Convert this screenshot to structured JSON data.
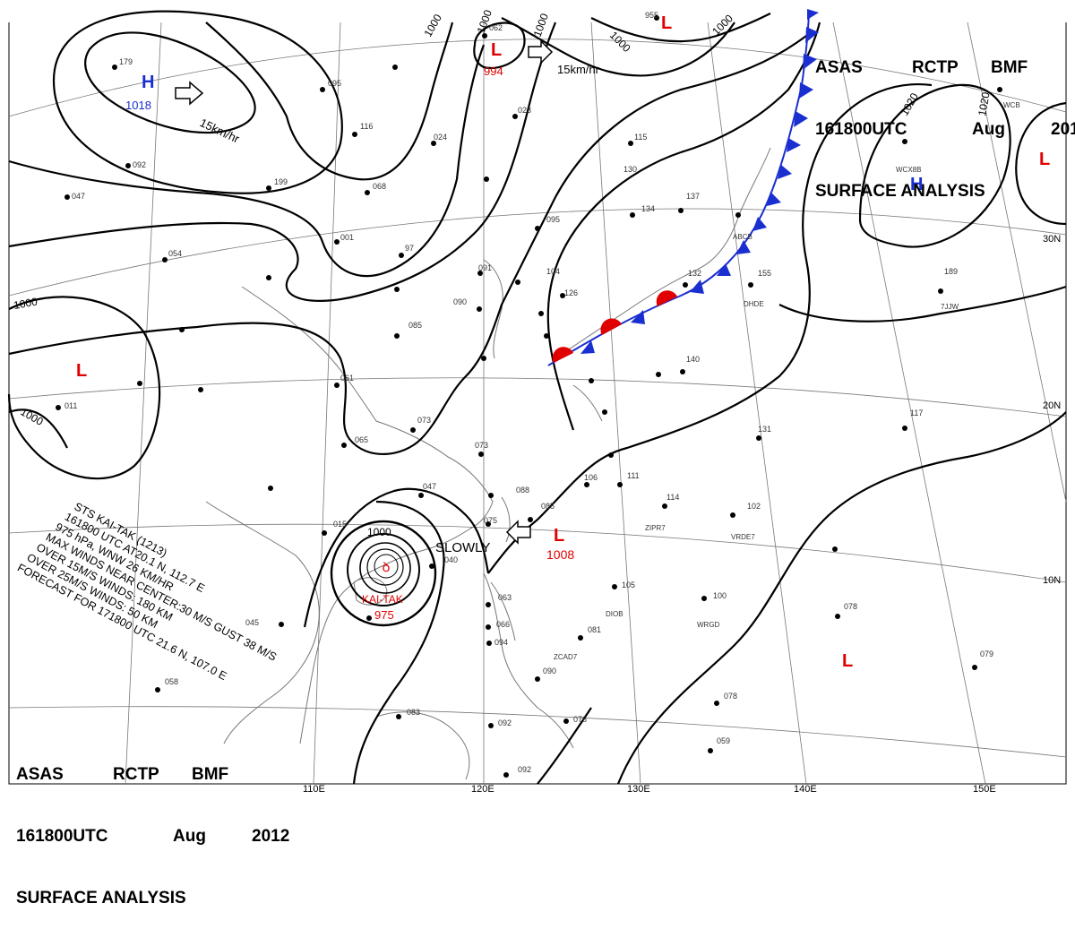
{
  "header": {
    "agency": "ASAS",
    "center": "RCTP",
    "office": "BMF",
    "valid_time": "161800UTC",
    "month": "Aug",
    "year": "2012",
    "product": "SURFACE ANALYSIS"
  },
  "longitude_labels": [
    "110E",
    "120E",
    "130E",
    "140E",
    "150E"
  ],
  "latitude_labels": [
    "30N",
    "20N",
    "10N"
  ],
  "pressure_centers": [
    {
      "type": "H",
      "value": "1018",
      "color": "#1a2fd0"
    },
    {
      "type": "L",
      "value": "994",
      "color": "#e00000"
    },
    {
      "type": "L",
      "value": "",
      "color": "#e00000"
    },
    {
      "type": "L",
      "value": "",
      "color": "#e00000"
    },
    {
      "type": "H",
      "value": "",
      "color": "#1a2fd0"
    },
    {
      "type": "L",
      "value": "",
      "color": "#e00000"
    },
    {
      "type": "L",
      "value": "1008",
      "color": "#e00000"
    },
    {
      "type": "L",
      "value": "",
      "color": "#e00000"
    }
  ],
  "isobar_labels": [
    "1000",
    "1000",
    "1000",
    "1000",
    "1000",
    "1000",
    "1000",
    "1020",
    "1020",
    "1000"
  ],
  "movement_labels": [
    "15km/hr",
    "15km/hr",
    "SLOWLY"
  ],
  "typhoon": {
    "name": "KAI-TAK",
    "pressure": "975",
    "bulletin": [
      "STS  KAI-TAK  (1213)",
      "161800 UTC  AT20.1 N, 112.7 E",
      "975 hPa, WNW  26 KM/HR",
      "MAX WINDS NEAR CENTER:30 M/S GUST 38 M/S",
      "OVER 15M/S WINDS: 180 KM",
      "OVER 25M/S WINDS: 50 KM",
      "FORECAST FOR 171800 UTC 21.6 N, 107.0 E"
    ]
  },
  "station_ids": [
    "ABCB",
    "DHDE",
    "ZIPR7",
    "VRDE7",
    "DIOB",
    "WRGD",
    "ZCAD7",
    "WCX8B",
    "7JJW",
    "WCB"
  ],
  "station_numbers": [
    "179",
    "092",
    "047",
    "054",
    "095",
    "116",
    "199",
    "001",
    "97",
    "024",
    "068",
    "062",
    "023",
    "115",
    "130",
    "134",
    "137",
    "095",
    "104",
    "091",
    "090",
    "085",
    "126",
    "132",
    "155",
    "189",
    "061",
    "011",
    "073",
    "073",
    "065",
    "047",
    "015",
    "040",
    "088",
    "085",
    "075",
    "106",
    "111",
    "114",
    "102",
    "131",
    "117",
    "140",
    "063",
    "066",
    "094",
    "081",
    "090",
    "105",
    "100",
    "078",
    "079",
    "076",
    "059",
    "078",
    "092",
    "092",
    "083",
    "045",
    "058",
    "955"
  ],
  "colors": {
    "isobar": "#000000",
    "cold_front": "#1a2fd0",
    "warm_front": "#e00000",
    "high": "#1a2fd0",
    "low": "#e00000",
    "grid": "#777777",
    "coast": "#777777"
  }
}
